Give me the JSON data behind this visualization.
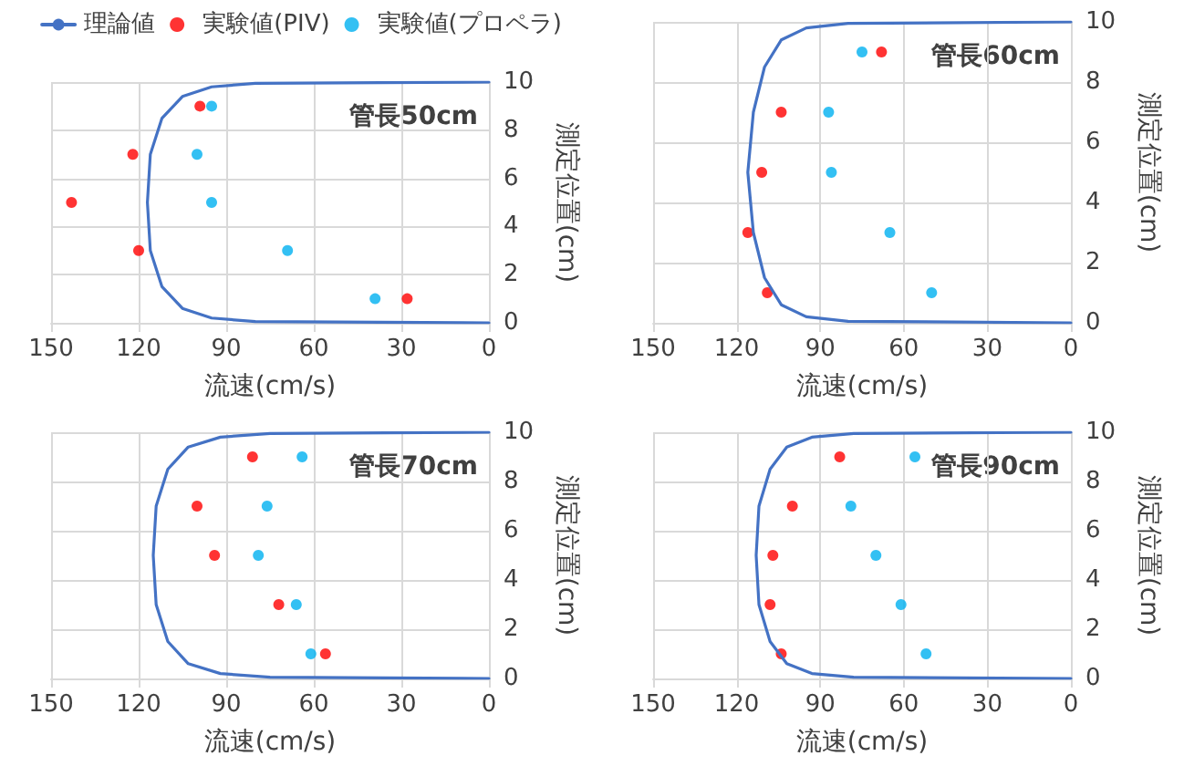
{
  "chart_data": [
    {
      "type": "scatter",
      "annotations": [
        "管長50cm"
      ],
      "xlabel": "流速(cm/s)",
      "ylabel": "測定位置(cm)",
      "xlim": [
        150,
        0
      ],
      "ylim": [
        0,
        10
      ],
      "xticks": [
        150,
        120,
        90,
        60,
        30,
        0
      ],
      "yticks": [
        0,
        2,
        4,
        6,
        8,
        10
      ],
      "grid": true,
      "legend": "top",
      "series": [
        {
          "name": "理論値",
          "type": "line",
          "marker": "none",
          "color": "#4472c4",
          "x": [
            0,
            80,
            95,
            105,
            112,
            116,
            117,
            116,
            112,
            105,
            95,
            80,
            0
          ],
          "values": [
            0,
            0.05,
            0.2,
            0.6,
            1.5,
            3,
            5,
            7,
            8.5,
            9.4,
            9.8,
            9.95,
            10
          ]
        },
        {
          "name": "実験値(PIV)",
          "marker": "circle",
          "color": "#ff0000",
          "x": [
            99,
            122,
            143,
            120,
            28
          ],
          "values": [
            9,
            7,
            5,
            3,
            1
          ]
        },
        {
          "name": "実験値(プロペラ)",
          "marker": "circle",
          "color": "#00b0f0",
          "x": [
            95,
            100,
            95,
            69,
            39
          ],
          "values": [
            9,
            7,
            5,
            3,
            1
          ]
        }
      ]
    },
    {
      "type": "scatter",
      "annotations": [
        "管長60cm"
      ],
      "xlabel": "流速(cm/s)",
      "ylabel": "測定位置(cm)",
      "xlim": [
        150,
        0
      ],
      "ylim": [
        0,
        10
      ],
      "xticks": [
        150,
        120,
        90,
        60,
        30,
        0
      ],
      "yticks": [
        0,
        2,
        4,
        6,
        8,
        10
      ],
      "grid": true,
      "series": [
        {
          "type": "line",
          "marker": "none",
          "color": "#4472c4",
          "x": [
            0,
            80,
            95,
            104,
            110,
            114,
            116,
            114,
            110,
            104,
            95,
            80,
            0
          ],
          "values": [
            0,
            0.05,
            0.2,
            0.6,
            1.5,
            3,
            5,
            7,
            8.5,
            9.4,
            9.8,
            9.95,
            10
          ]
        },
        {
          "marker": "circle",
          "color": "#ff0000",
          "x": [
            68,
            104,
            111,
            116,
            109
          ],
          "values": [
            9,
            7,
            5,
            3,
            1
          ]
        },
        {
          "marker": "circle",
          "color": "#00b0f0",
          "x": [
            75,
            87,
            86,
            65,
            50
          ],
          "values": [
            9,
            7,
            5,
            3,
            1
          ]
        }
      ]
    },
    {
      "type": "scatter",
      "annotations": [
        "管長70cm"
      ],
      "xlabel": "流速(cm/s)",
      "ylabel": "測定位置(cm)",
      "xlim": [
        150,
        0
      ],
      "ylim": [
        0,
        10
      ],
      "xticks": [
        150,
        120,
        90,
        60,
        30,
        0
      ],
      "yticks": [
        0,
        2,
        4,
        6,
        8,
        10
      ],
      "grid": true,
      "series": [
        {
          "type": "line",
          "marker": "none",
          "color": "#4472c4",
          "x": [
            0,
            75,
            92,
            103,
            110,
            114,
            115,
            114,
            110,
            103,
            92,
            75,
            0
          ],
          "values": [
            0,
            0.05,
            0.2,
            0.6,
            1.5,
            3,
            5,
            7,
            8.5,
            9.4,
            9.8,
            9.95,
            10
          ]
        },
        {
          "marker": "circle",
          "color": "#ff0000",
          "x": [
            81,
            100,
            94,
            72,
            56
          ],
          "values": [
            9,
            7,
            5,
            3,
            1
          ]
        },
        {
          "marker": "circle",
          "color": "#00b0f0",
          "x": [
            64,
            76,
            79,
            66,
            61
          ],
          "values": [
            9,
            7,
            5,
            3,
            1
          ]
        }
      ]
    },
    {
      "type": "scatter",
      "annotations": [
        "管長90cm"
      ],
      "xlabel": "流速(cm/s)",
      "ylabel": "測定位置(cm)",
      "xlim": [
        150,
        0
      ],
      "ylim": [
        0,
        10
      ],
      "xticks": [
        150,
        120,
        90,
        60,
        30,
        0
      ],
      "yticks": [
        0,
        2,
        4,
        6,
        8,
        10
      ],
      "grid": true,
      "series": [
        {
          "type": "line",
          "marker": "none",
          "color": "#4472c4",
          "x": [
            0,
            78,
            93,
            102,
            108,
            112,
            113,
            112,
            108,
            102,
            93,
            78,
            0
          ],
          "values": [
            0,
            0.05,
            0.2,
            0.6,
            1.5,
            3,
            5,
            7,
            8.5,
            9.4,
            9.8,
            9.95,
            10
          ]
        },
        {
          "marker": "circle",
          "color": "#ff0000",
          "x": [
            83,
            100,
            107,
            108,
            104
          ],
          "values": [
            9,
            7,
            5,
            3,
            1
          ]
        },
        {
          "marker": "circle",
          "color": "#00b0f0",
          "x": [
            56,
            79,
            70,
            61,
            52
          ],
          "values": [
            9,
            7,
            5,
            3,
            1
          ]
        }
      ]
    }
  ]
}
